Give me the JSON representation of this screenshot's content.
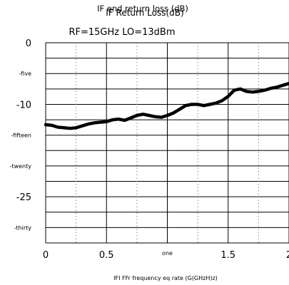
{
  "chart_data": {
    "type": "line",
    "title_overlay": "IF end return loss (dB)",
    "title": "IF Return Loss(dB)",
    "subtitle": "RF=15GHz LO=13dBm",
    "xlabel": "IFI FFr frequency eq rate (G(GHzH)z)",
    "ylabel": "",
    "xlim": [
      0,
      2
    ],
    "ylim": [
      -32.5,
      0
    ],
    "x_ticks": [
      {
        "value": 0,
        "label": "0"
      },
      {
        "value": 0.5,
        "label": "0.5"
      },
      {
        "value": 1,
        "label": "one"
      },
      {
        "value": 1.5,
        "label": "1.5"
      },
      {
        "value": 2,
        "label": "2"
      }
    ],
    "y_ticks": [
      {
        "value": 0,
        "label": "0"
      },
      {
        "value": -5,
        "label": "-five"
      },
      {
        "value": -10,
        "label": "-10"
      },
      {
        "value": -15,
        "label": "-fifteen"
      },
      {
        "value": -20,
        "label": "-twenty"
      },
      {
        "value": -25,
        "label": "-25"
      },
      {
        "value": -30,
        "label": "-thirty"
      }
    ],
    "grid": true,
    "series": [
      {
        "color": "#000000",
        "x": [
          0,
          0.05,
          0.1,
          0.15,
          0.2,
          0.25,
          0.3,
          0.35,
          0.4,
          0.45,
          0.5,
          0.55,
          0.6,
          0.65,
          0.7,
          0.75,
          0.8,
          0.85,
          0.9,
          0.95,
          1.0,
          1.05,
          1.1,
          1.15,
          1.2,
          1.25,
          1.3,
          1.35,
          1.4,
          1.45,
          1.5,
          1.55,
          1.6,
          1.65,
          1.7,
          1.75,
          1.8,
          1.85,
          1.9,
          1.95,
          2.0
        ],
        "y": [
          -13.3,
          -13.4,
          -13.7,
          -13.8,
          -13.9,
          -13.8,
          -13.5,
          -13.2,
          -13.0,
          -12.9,
          -12.8,
          -12.5,
          -12.4,
          -12.6,
          -12.2,
          -11.8,
          -11.6,
          -11.8,
          -12.0,
          -12.1,
          -11.8,
          -11.4,
          -10.8,
          -10.2,
          -10.0,
          -10.0,
          -10.2,
          -10.0,
          -9.8,
          -9.4,
          -8.7,
          -7.7,
          -7.5,
          -7.9,
          -8.0,
          -7.9,
          -7.7,
          -7.4,
          -7.2,
          -6.9,
          -6.6
        ]
      }
    ]
  }
}
